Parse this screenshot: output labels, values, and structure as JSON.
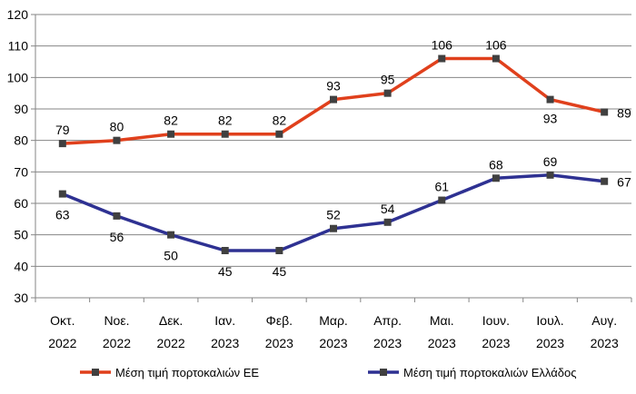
{
  "chart_data": {
    "type": "line",
    "categories": [
      [
        "Οκτ.",
        "2022"
      ],
      [
        "Νοε.",
        "2022"
      ],
      [
        "Δεκ.",
        "2022"
      ],
      [
        "Ιαν.",
        "2023"
      ],
      [
        "Φεβ.",
        "2023"
      ],
      [
        "Μαρ.",
        "2023"
      ],
      [
        "Απρ.",
        "2023"
      ],
      [
        "Μαι.",
        "2023"
      ],
      [
        "Ιουν.",
        "2023"
      ],
      [
        "Ιουλ.",
        "2023"
      ],
      [
        "Αυγ.",
        "2023"
      ]
    ],
    "series": [
      {
        "name": "Μέση τιμή πορτοκαλιών ΕΕ",
        "color": "#e0401c",
        "values": [
          79,
          80,
          82,
          82,
          82,
          93,
          95,
          106,
          106,
          93,
          89
        ]
      },
      {
        "name": "Μέση τιμή πορτοκαλιών Ελλάδος",
        "color": "#2e3192",
        "values": [
          63,
          56,
          50,
          45,
          45,
          52,
          54,
          61,
          68,
          69,
          67
        ]
      }
    ],
    "ylim": [
      30,
      120
    ],
    "yticks": [
      30,
      40,
      50,
      60,
      70,
      80,
      90,
      100,
      110,
      120
    ],
    "grid": true,
    "legend_position": "bottom",
    "title": "",
    "xlabel": "",
    "ylabel": ""
  }
}
